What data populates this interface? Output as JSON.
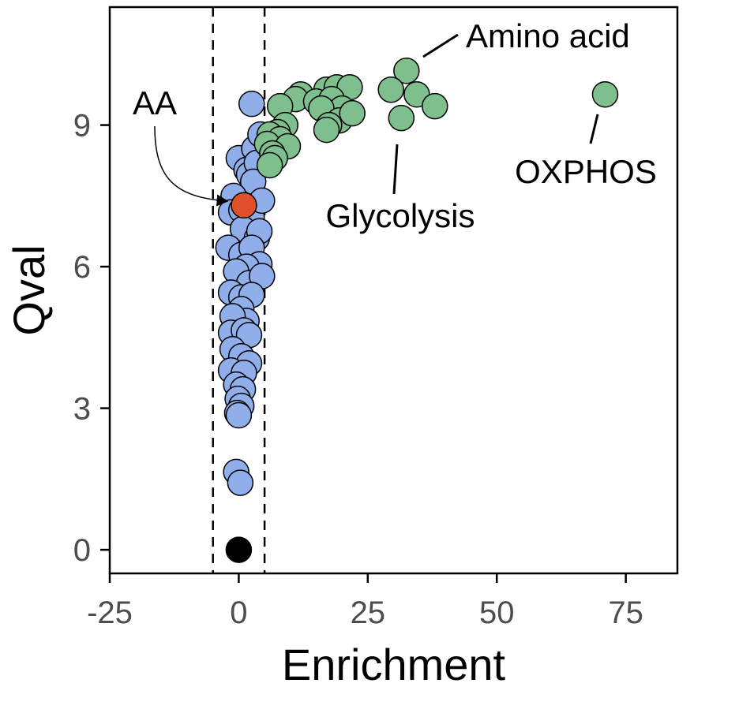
{
  "chart_data": {
    "type": "scatter",
    "xlabel": "Enrichment",
    "ylabel": "Qval",
    "xlim": [
      -25,
      85
    ],
    "ylim": [
      -0.5,
      11.5
    ],
    "x_ticks": [
      -25,
      0,
      25,
      50,
      75
    ],
    "x_tick_labels": [
      "-25",
      "0",
      "25",
      "50",
      "75"
    ],
    "y_ticks": [
      0,
      3,
      6,
      9
    ],
    "y_tick_labels": [
      "0",
      "3",
      "6",
      "9"
    ],
    "grid": false,
    "legend": "none",
    "threshold_lines": [
      -5,
      5
    ],
    "colors": {
      "blue": "#8FAEEA",
      "green": "#7FBF8E",
      "highlight": "#E0502A",
      "black": "#000000"
    },
    "series": [
      {
        "color": "blue",
        "points": [
          [
            2.5,
            9.45
          ],
          [
            0,
            8.3
          ],
          [
            1.5,
            8.05
          ],
          [
            2,
            7.95
          ],
          [
            3,
            8.5
          ],
          [
            3.5,
            8.2
          ],
          [
            4.2,
            8.8
          ],
          [
            2.8,
            7.8
          ],
          [
            -1,
            7.5
          ],
          [
            -1.5,
            7.15
          ],
          [
            0.5,
            7.2
          ],
          [
            2.5,
            7.05
          ],
          [
            4.5,
            7.4
          ],
          [
            0.8,
            6.8
          ],
          [
            3.5,
            6.6
          ],
          [
            4,
            6.75
          ],
          [
            -2,
            6.4
          ],
          [
            0.5,
            6.25
          ],
          [
            2.5,
            6.4
          ],
          [
            4,
            6.05
          ],
          [
            1.5,
            6.0
          ],
          [
            -0.5,
            5.9
          ],
          [
            2,
            5.65
          ],
          [
            4.5,
            5.8
          ],
          [
            -1.5,
            5.45
          ],
          [
            0.5,
            5.35
          ],
          [
            2.5,
            5.4
          ],
          [
            0.5,
            5.1
          ],
          [
            1.5,
            4.85
          ],
          [
            -1.2,
            4.95
          ],
          [
            -1.5,
            4.6
          ],
          [
            1,
            4.65
          ],
          [
            2,
            4.55
          ],
          [
            -1.2,
            4.25
          ],
          [
            0.5,
            4.1
          ],
          [
            2,
            3.95
          ],
          [
            -1.5,
            3.8
          ],
          [
            1,
            3.75
          ],
          [
            -0.5,
            3.5
          ],
          [
            0.8,
            3.4
          ],
          [
            -0.2,
            3.2
          ],
          [
            0.5,
            3.05
          ],
          [
            -0.3,
            2.9
          ],
          [
            0,
            2.85
          ],
          [
            -0.5,
            1.65
          ],
          [
            0.3,
            1.42
          ]
        ]
      },
      {
        "color": "green",
        "points": [
          [
            32.5,
            10.15
          ],
          [
            29.5,
            9.75
          ],
          [
            34.5,
            9.65
          ],
          [
            38,
            9.4
          ],
          [
            31.5,
            9.15
          ],
          [
            71,
            9.65
          ],
          [
            17,
            9.75
          ],
          [
            19,
            9.8
          ],
          [
            21.5,
            9.8
          ],
          [
            12,
            9.65
          ],
          [
            11,
            9.55
          ],
          [
            15,
            9.5
          ],
          [
            18,
            9.55
          ],
          [
            20,
            9.35
          ],
          [
            8,
            9.4
          ],
          [
            16,
            9.35
          ],
          [
            19.5,
            9.1
          ],
          [
            22,
            9.25
          ],
          [
            17.5,
            9.0
          ],
          [
            17,
            8.9
          ],
          [
            9,
            9.0
          ],
          [
            7.5,
            8.85
          ],
          [
            6,
            8.8
          ],
          [
            8,
            8.7
          ],
          [
            5.5,
            8.6
          ],
          [
            9.5,
            8.55
          ],
          [
            6.5,
            8.4
          ],
          [
            7,
            8.3
          ],
          [
            6,
            8.15
          ]
        ]
      },
      {
        "color": "highlight",
        "points": [
          [
            1,
            7.3
          ]
        ]
      },
      {
        "color": "black",
        "points": [
          [
            0,
            0
          ]
        ]
      }
    ],
    "annotations": [
      {
        "text": "Amino acid",
        "point": [
          32.5,
          10.15
        ],
        "style": "line"
      },
      {
        "text": "Glycolysis",
        "point": [
          31.5,
          9.15
        ],
        "style": "line"
      },
      {
        "text": "OXPHOS",
        "point": [
          71,
          9.65
        ],
        "style": "line"
      },
      {
        "text": "AA",
        "point": [
          1,
          7.3
        ],
        "style": "arrow"
      }
    ]
  }
}
